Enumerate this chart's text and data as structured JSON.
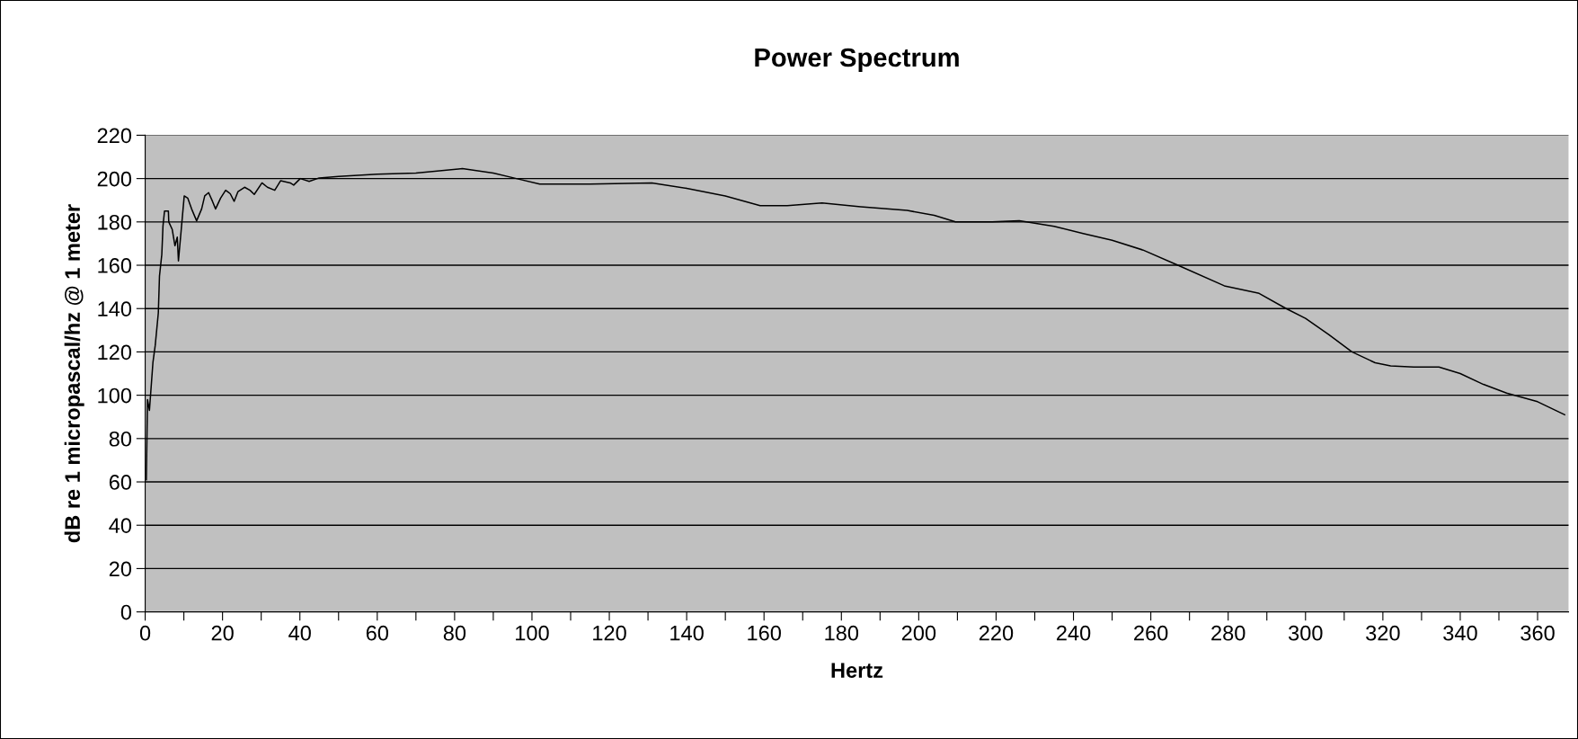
{
  "chart_data": {
    "type": "line",
    "title": "Power Spectrum",
    "xlabel": "Hertz",
    "ylabel": "dB re 1 micropascal/hz @ 1 meter",
    "x": [
      0.3,
      0.6,
      1.1,
      2,
      2.6,
      3.4,
      3.7,
      4.3,
      4.6,
      5,
      6,
      6.1,
      7,
      7.7,
      8.3,
      8.6,
      9.3,
      10.1,
      11,
      12,
      13.3,
      14.6,
      15.4,
      16.4,
      17.4,
      18.2,
      19.5,
      20.8,
      22,
      23,
      24,
      25.7,
      27.1,
      28.2,
      30.2,
      31.6,
      33.5,
      35,
      37.5,
      38.4,
      40.1,
      42.4,
      45,
      50,
      60,
      70,
      82,
      90,
      96,
      102,
      115,
      131,
      140,
      150,
      159,
      166,
      175,
      185,
      197,
      204,
      209.5,
      219,
      226,
      235,
      242.5,
      250,
      258,
      267,
      279,
      288,
      295,
      300,
      306,
      312,
      318,
      322,
      328,
      334.5,
      340,
      346,
      352,
      360,
      367
    ],
    "series": [
      {
        "color": "#000000",
        "values": [
          61,
          98,
          93,
          115,
          123,
          138,
          155,
          165,
          178,
          185,
          185,
          180,
          176.5,
          169,
          173,
          162,
          176,
          192,
          191,
          186,
          180.5,
          186,
          192,
          193.5,
          189.5,
          186,
          191,
          194.6,
          193,
          189.5,
          194,
          196,
          194.6,
          192.7,
          198,
          196,
          194.6,
          199,
          198,
          197,
          200,
          198.7,
          200.3,
          201,
          202,
          202.5,
          204.6,
          202.5,
          200,
          197.5,
          197.5,
          198,
          195.5,
          192,
          187.5,
          187.5,
          188.7,
          187,
          185.3,
          183,
          180,
          180,
          180.5,
          178,
          174.6,
          171.5,
          167,
          160,
          150.5,
          147,
          140,
          135.5,
          128,
          120,
          115,
          113.5,
          113,
          113,
          110,
          105,
          101,
          97,
          91
        ]
      }
    ],
    "xlim": [
      0,
      368
    ],
    "ylim": [
      0,
      220
    ],
    "xticks": [
      0,
      {
        "value": 10,
        "label": null
      },
      20,
      {
        "value": 30,
        "label": null
      },
      40,
      {
        "value": 50,
        "label": null
      },
      60,
      {
        "value": 70,
        "label": null
      },
      80,
      {
        "value": 90,
        "label": null
      },
      100,
      {
        "value": 110,
        "label": null
      },
      120,
      {
        "value": 130,
        "label": null
      },
      140,
      {
        "value": 150,
        "label": null
      },
      160,
      {
        "value": 170,
        "label": null
      },
      180,
      {
        "value": 190,
        "label": null
      },
      200,
      {
        "value": 210,
        "label": null
      },
      220,
      {
        "value": 230,
        "label": null
      },
      240,
      {
        "value": 250,
        "label": null
      },
      260,
      {
        "value": 270,
        "label": null
      },
      280,
      {
        "value": 290,
        "label": null
      },
      300,
      {
        "value": 310,
        "label": null
      },
      320,
      {
        "value": 330,
        "label": null
      },
      340,
      {
        "value": 350,
        "label": null
      },
      360
    ],
    "yticks": [
      0,
      20,
      40,
      60,
      80,
      100,
      120,
      140,
      160,
      180,
      200,
      220
    ],
    "grid": "y",
    "legend": false,
    "marker": "none",
    "line_style": "solid"
  }
}
